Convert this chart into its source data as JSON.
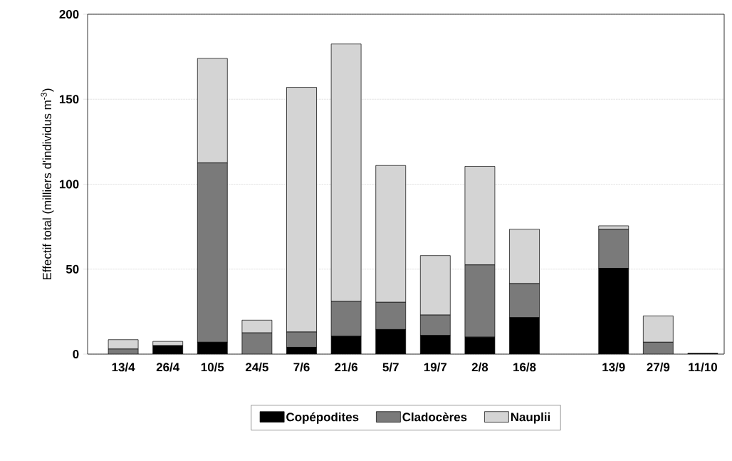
{
  "chart_data": {
    "type": "bar",
    "stacked": true,
    "ylabel": "Effectif total (milliers d'individus m$^{-3}$)",
    "categories": [
      "13/4",
      "26/4",
      "10/5",
      "24/5",
      "7/6",
      "21/6",
      "5/7",
      "19/7",
      "2/8",
      "16/8",
      null,
      "13/9",
      "27/9",
      "11/10"
    ],
    "series": [
      {
        "name": "Copépodites",
        "color": "#000000",
        "values": [
          0,
          5,
          7,
          0,
          4,
          10.5,
          14.5,
          11,
          10,
          21.5,
          null,
          50.5,
          0,
          0.5
        ]
      },
      {
        "name": "Cladocères",
        "color": "#7a7a7a",
        "values": [
          3,
          0,
          105.5,
          12.5,
          9,
          20.5,
          16,
          12,
          42.5,
          20,
          null,
          23,
          7,
          0
        ]
      },
      {
        "name": "Nauplii",
        "color": "#d4d4d4",
        "values": [
          5.5,
          2.5,
          61.5,
          7.5,
          144,
          151.5,
          80.5,
          35,
          58,
          32,
          null,
          2,
          15.5,
          0
        ]
      }
    ],
    "ylim": [
      0,
      200
    ],
    "yticks": [
      0,
      50,
      100,
      150,
      200
    ],
    "grid": "y",
    "legend": "bottom"
  }
}
